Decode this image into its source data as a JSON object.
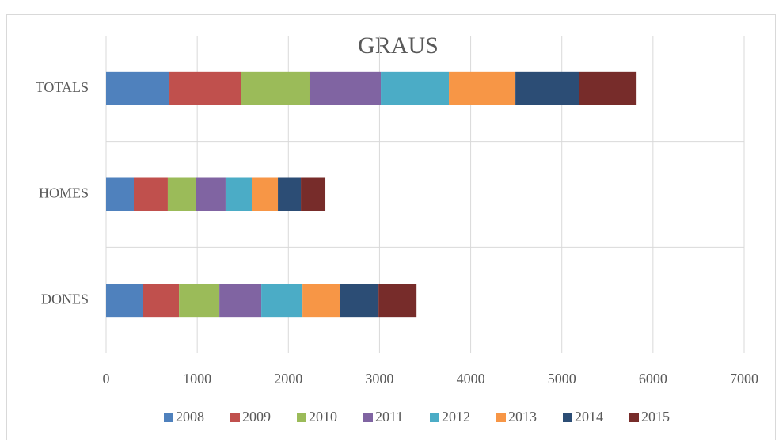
{
  "chart_data": {
    "type": "stacked_bar_horizontal",
    "title": "GRAUS",
    "categories": [
      "TOTALS",
      "HOMES",
      "DONES"
    ],
    "series": [
      {
        "name": "2008",
        "color": "#4f81bd",
        "values": [
          695,
          304,
          400
        ]
      },
      {
        "name": "2009",
        "color": "#c0504d",
        "values": [
          790,
          373,
          400
        ]
      },
      {
        "name": "2010",
        "color": "#9bbb59",
        "values": [
          747,
          313,
          443
        ]
      },
      {
        "name": "2011",
        "color": "#8064a2",
        "values": [
          782,
          321,
          460
        ]
      },
      {
        "name": "2012",
        "color": "#4bacc6",
        "values": [
          747,
          287,
          452
        ]
      },
      {
        "name": "2013",
        "color": "#f79646",
        "values": [
          730,
          287,
          408
        ]
      },
      {
        "name": "2014",
        "color": "#2c4d75",
        "values": [
          695,
          252,
          426
        ]
      },
      {
        "name": "2015",
        "color": "#772c2a",
        "values": [
          634,
          269,
          417
        ]
      }
    ],
    "xlim": [
      0,
      7000
    ],
    "xticks": [
      0,
      1000,
      2000,
      3000,
      4000,
      5000,
      6000,
      7000
    ],
    "grid": true,
    "legend": "bottom"
  }
}
